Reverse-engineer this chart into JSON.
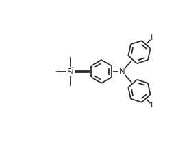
{
  "bg_color": "#ffffff",
  "line_color": "#2a2a2a",
  "line_width": 1.3,
  "font_size_si": 8.5,
  "font_size_n": 8.5,
  "font_size_i": 8.0,
  "si_label": "Si",
  "n_label": "N",
  "i_label": "I",
  "figsize": [
    2.76,
    2.08
  ],
  "dpi": 100,
  "xlim": [
    0,
    11
  ],
  "ylim": [
    0,
    8.5
  ]
}
